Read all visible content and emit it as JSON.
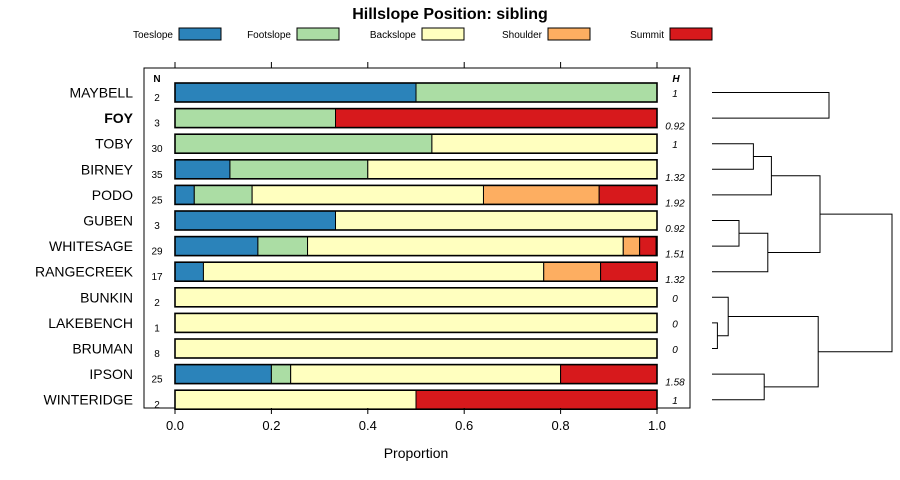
{
  "chart_data": {
    "type": "bar",
    "orientation": "horizontal",
    "stacked": true,
    "title": "Hillslope Position: sibling",
    "xlabel": "Proportion",
    "ylabel": "",
    "xlim": [
      0,
      1
    ],
    "x_ticks": [
      "0.0",
      "0.2",
      "0.4",
      "0.6",
      "0.8",
      "1.0"
    ],
    "n_header": "N",
    "h_header": "H",
    "legend": [
      {
        "name": "Toeslope",
        "color": "#2b83ba"
      },
      {
        "name": "Footslope",
        "color": "#abdda4"
      },
      {
        "name": "Backslope",
        "color": "#ffffbf"
      },
      {
        "name": "Shoulder",
        "color": "#fdae61"
      },
      {
        "name": "Summit",
        "color": "#d7191c"
      }
    ],
    "rows": [
      {
        "name": "MAYBELL",
        "bold": false,
        "n": "2",
        "h": "1",
        "values": [
          0.5,
          0.5,
          0,
          0,
          0
        ]
      },
      {
        "name": "FOY",
        "bold": true,
        "n": "3",
        "h": "0.92",
        "values": [
          0,
          0.333,
          0,
          0,
          0.667
        ]
      },
      {
        "name": "TOBY",
        "bold": false,
        "n": "30",
        "h": "1",
        "values": [
          0,
          0.533,
          0.467,
          0,
          0
        ]
      },
      {
        "name": "BIRNEY",
        "bold": false,
        "n": "35",
        "h": "1.32",
        "values": [
          0.114,
          0.286,
          0.6,
          0,
          0
        ]
      },
      {
        "name": "PODO",
        "bold": false,
        "n": "25",
        "h": "1.92",
        "values": [
          0.04,
          0.12,
          0.48,
          0.24,
          0.12
        ]
      },
      {
        "name": "GUBEN",
        "bold": false,
        "n": "3",
        "h": "0.92",
        "values": [
          0.333,
          0,
          0.667,
          0,
          0
        ]
      },
      {
        "name": "WHITESAGE",
        "bold": false,
        "n": "29",
        "h": "1.51",
        "values": [
          0.172,
          0.103,
          0.655,
          0.034,
          0.034
        ]
      },
      {
        "name": "RANGECREEK",
        "bold": false,
        "n": "17",
        "h": "1.32",
        "values": [
          0.059,
          0,
          0.706,
          0.118,
          0.118
        ]
      },
      {
        "name": "BUNKIN",
        "bold": false,
        "n": "2",
        "h": "0",
        "values": [
          0,
          0,
          1,
          0,
          0
        ]
      },
      {
        "name": "LAKEBENCH",
        "bold": false,
        "n": "1",
        "h": "0",
        "values": [
          0,
          0,
          1,
          0,
          0
        ]
      },
      {
        "name": "BRUMAN",
        "bold": false,
        "n": "8",
        "h": "0",
        "values": [
          0,
          0,
          1,
          0,
          0
        ]
      },
      {
        "name": "IPSON",
        "bold": false,
        "n": "25",
        "h": "1.58",
        "values": [
          0.2,
          0.04,
          0.56,
          0,
          0.2
        ]
      },
      {
        "name": "WINTERIDGE",
        "bold": false,
        "n": "2",
        "h": "1",
        "values": [
          0,
          0,
          0.5,
          0,
          0.5
        ]
      }
    ],
    "dendrogram": {
      "leaves": [
        "MAYBELL",
        "FOY",
        "TOBY",
        "BIRNEY",
        "PODO",
        "GUBEN",
        "WHITESAGE",
        "RANGECREEK",
        "BUNKIN",
        "LAKEBENCH",
        "BRUMAN",
        "IPSON",
        "WINTERIDGE"
      ],
      "max_height": 1,
      "merges": [
        {
          "a": "BRUMAN",
          "b": "LAKEBENCH",
          "height": 0.03
        },
        {
          "a": 1,
          "b": "BUNKIN",
          "height": 0.09
        },
        {
          "a": "GUBEN",
          "b": "WHITESAGE",
          "height": 0.15
        },
        {
          "a": "TOBY",
          "b": "BIRNEY",
          "height": 0.23
        },
        {
          "a": 3,
          "b": "RANGECREEK",
          "height": 0.31
        },
        {
          "a": 4,
          "b": "PODO",
          "height": 0.33
        },
        {
          "a": "IPSON",
          "b": "WINTERIDGE",
          "height": 0.29
        },
        {
          "a": 2,
          "b": 7,
          "height": 0.59
        },
        {
          "a": 5,
          "b": 6,
          "height": 0.6
        },
        {
          "a": "MAYBELL",
          "b": "FOY",
          "height": 0.65
        },
        {
          "a": 9,
          "b": 8,
          "height": 1.0
        }
      ]
    }
  }
}
